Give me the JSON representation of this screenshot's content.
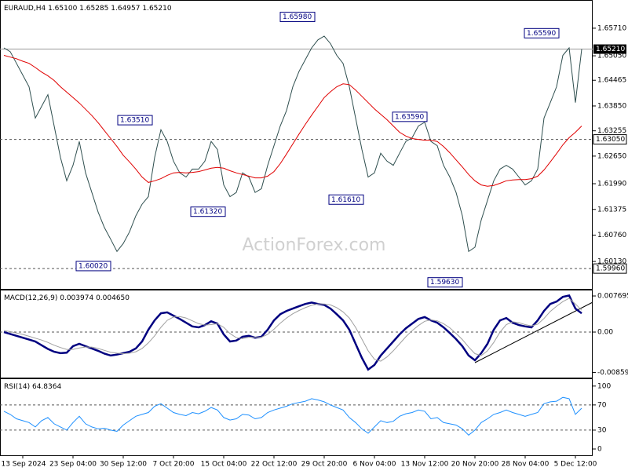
{
  "chart_data": [
    {
      "type": "line",
      "title": "EURAUD,H4",
      "header_values": [
        "1.65100",
        "1.65285",
        "1.64957",
        "1.65210"
      ],
      "watermark": "ActionForex.com",
      "categories": [
        null,
        null,
        null,
        "13 Sep 2024",
        null,
        null,
        null,
        null,
        null,
        null,
        null,
        "23 Sep 04:00",
        null,
        null,
        null,
        null,
        null,
        null,
        null,
        "30 Sep 12:00",
        null,
        null,
        null,
        null,
        null,
        null,
        null,
        "7 Oct 20:00",
        null,
        null,
        null,
        null,
        null,
        null,
        null,
        "15 Oct 04:00",
        null,
        null,
        null,
        null,
        null,
        null,
        null,
        "22 Oct 12:00",
        null,
        null,
        null,
        null,
        null,
        null,
        null,
        "29 Oct 20:00",
        null,
        null,
        null,
        null,
        null,
        null,
        null,
        "6 Nov 04:00",
        null,
        null,
        null,
        null,
        null,
        null,
        null,
        "13 Nov 12:00",
        null,
        null,
        null,
        null,
        null,
        null,
        null,
        "20 Nov 20:00",
        null,
        null,
        null,
        null,
        null,
        null,
        null,
        "28 Nov 04:00",
        null,
        null,
        null,
        null,
        null,
        null,
        null,
        "5 Dec 12:00",
        null
      ],
      "series": [
        {
          "name": "EURAUD",
          "color": "#2f4f4f",
          "values": [
            1.6524,
            1.6515,
            1.6487,
            1.6459,
            1.6431,
            1.6356,
            1.6384,
            1.6412,
            1.6337,
            1.6262,
            1.6206,
            1.6243,
            1.63,
            1.6225,
            1.6178,
            1.6131,
            1.6094,
            1.6066,
            1.6037,
            1.6056,
            1.6084,
            1.6122,
            1.615,
            1.6168,
            1.6262,
            1.6328,
            1.63,
            1.6253,
            1.6225,
            1.6215,
            1.6234,
            1.6234,
            1.6253,
            1.63,
            1.6281,
            1.6196,
            1.6168,
            1.6178,
            1.6225,
            1.6215,
            1.6178,
            1.6187,
            1.6243,
            1.629,
            1.6337,
            1.6374,
            1.6431,
            1.6468,
            1.6496,
            1.6524,
            1.6543,
            1.6552,
            1.6534,
            1.6506,
            1.6487,
            1.6431,
            1.6356,
            1.6281,
            1.6215,
            1.6225,
            1.6272,
            1.6253,
            1.6243,
            1.6272,
            1.63,
            1.6309,
            1.6337,
            1.6346,
            1.63,
            1.629,
            1.6243,
            1.6215,
            1.6178,
            1.6122,
            1.6037,
            1.6047,
            1.6112,
            1.6159,
            1.6206,
            1.6234,
            1.6243,
            1.6234,
            1.6215,
            1.6196,
            1.6206,
            1.6234,
            1.6356,
            1.6393,
            1.6431,
            1.6506,
            1.6524,
            1.6393,
            1.6521
          ]
        },
        {
          "name": "MA",
          "color": "#e00000",
          "values": [
            1.6506,
            1.6502,
            1.6498,
            1.6492,
            1.6487,
            1.6477,
            1.6466,
            1.6457,
            1.6446,
            1.6431,
            1.6418,
            1.6405,
            1.6392,
            1.6377,
            1.6362,
            1.6345,
            1.6326,
            1.6307,
            1.6288,
            1.6267,
            1.6251,
            1.6234,
            1.6215,
            1.6202,
            1.6206,
            1.6211,
            1.6219,
            1.6225,
            1.6226,
            1.6225,
            1.6226,
            1.6228,
            1.6232,
            1.6236,
            1.6238,
            1.6236,
            1.623,
            1.6225,
            1.6221,
            1.6217,
            1.6213,
            1.6213,
            1.6217,
            1.6228,
            1.6247,
            1.627,
            1.6294,
            1.6318,
            1.6341,
            1.6363,
            1.6384,
            1.6405,
            1.6419,
            1.6431,
            1.6438,
            1.6436,
            1.6423,
            1.6408,
            1.6393,
            1.6378,
            1.6365,
            1.6352,
            1.6337,
            1.6322,
            1.6313,
            1.6307,
            1.6305,
            1.6303,
            1.6303,
            1.63,
            1.6288,
            1.6273,
            1.6256,
            1.6239,
            1.6221,
            1.6206,
            1.6196,
            1.6193,
            1.6195,
            1.62,
            1.6206,
            1.6208,
            1.6209,
            1.6209,
            1.6211,
            1.6217,
            1.6232,
            1.6251,
            1.6271,
            1.6292,
            1.6309,
            1.6322,
            1.6337
          ]
        }
      ],
      "ylim": [
        1.59474,
        1.66366
      ],
      "yticks": [
        {
          "value": 1.6571,
          "label": "1.65710"
        },
        {
          "value": 1.6505,
          "label": "1.65050"
        },
        {
          "value": 1.64465,
          "label": "1.64465"
        },
        {
          "value": 1.6385,
          "label": "1.63850"
        },
        {
          "value": 1.63255,
          "label": "1.63255"
        },
        {
          "value": 1.6265,
          "label": "1.62650"
        },
        {
          "value": 1.6199,
          "label": "1.61990"
        },
        {
          "value": 1.61375,
          "label": "1.61375"
        },
        {
          "value": 1.6076,
          "label": "1.60760"
        },
        {
          "value": 1.6013,
          "label": "1.60130"
        }
      ],
      "current_price": {
        "value": 1.6521,
        "label": "1.65210"
      },
      "levels": [
        {
          "value": 1.6305,
          "label": "1.63050"
        },
        {
          "value": 1.5996,
          "label": "1.59960"
        }
      ],
      "annotations": [
        {
          "value": 1.6598,
          "label": "1.65980"
        },
        {
          "value": 1.6559,
          "label": "1.65590"
        },
        {
          "value": 1.6351,
          "label": "1.63510"
        },
        {
          "value": 1.6359,
          "label": "1.63590"
        },
        {
          "value": 1.6132,
          "label": "1.61320"
        },
        {
          "value": 1.6161,
          "label": "1.61610"
        },
        {
          "value": 1.6002,
          "label": "1.60020"
        },
        {
          "value": 1.5963,
          "label": "1.59630"
        }
      ]
    },
    {
      "type": "line",
      "title": "MACD(12,26,9)",
      "header_values": [
        "0.003974",
        "0.004650"
      ],
      "series": [
        {
          "name": "MACD",
          "color": "#000080",
          "values": [
            0,
            -0.0004,
            -0.0008,
            -0.0012,
            -0.0016,
            -0.002,
            -0.0028,
            -0.0036,
            -0.0042,
            -0.0045,
            -0.0044,
            -0.003,
            -0.0025,
            -0.003,
            -0.0035,
            -0.004,
            -0.0046,
            -0.005,
            -0.0048,
            -0.0045,
            -0.0042,
            -0.0035,
            -0.002,
            0.0005,
            0.0025,
            0.004,
            0.0042,
            0.0035,
            0.0028,
            0.002,
            0.0012,
            0.001,
            0.0015,
            0.0023,
            0.0018,
            -0.0005,
            -0.002,
            -0.0018,
            -0.001,
            -0.0008,
            -0.0012,
            -0.001,
            0.0005,
            0.0025,
            0.0038,
            0.0045,
            0.005,
            0.0055,
            0.006,
            0.0063,
            0.006,
            0.0058,
            0.005,
            0.0038,
            0.0025,
            0.0005,
            -0.0025,
            -0.0055,
            -0.008,
            -0.007,
            -0.005,
            -0.0035,
            -0.002,
            -0.0005,
            0.0008,
            0.0018,
            0.0028,
            0.0032,
            0.0025,
            0.002,
            0.001,
            -0.0002,
            -0.0015,
            -0.003,
            -0.005,
            -0.006,
            -0.0045,
            -0.0025,
            0.0005,
            0.0025,
            0.003,
            0.002,
            0.0015,
            0.0012,
            0.001,
            0.0025,
            0.0045,
            0.006,
            0.0065,
            0.0075,
            0.0078,
            0.005,
            0.004
          ]
        },
        {
          "name": "Signal",
          "color": "#a0a0a0",
          "values": [
            0.0003,
            0.0001,
            -0.0002,
            -0.0005,
            -0.0009,
            -0.0013,
            -0.0017,
            -0.0022,
            -0.0028,
            -0.0033,
            -0.0037,
            -0.0037,
            -0.0034,
            -0.0032,
            -0.0032,
            -0.0035,
            -0.0039,
            -0.0043,
            -0.0045,
            -0.0046,
            -0.0045,
            -0.0042,
            -0.0035,
            -0.0023,
            -0.0008,
            0.001,
            0.0025,
            0.0032,
            0.0033,
            0.003,
            0.0024,
            0.0018,
            0.0015,
            0.0016,
            0.0018,
            0.001,
            -0.0003,
            -0.0012,
            -0.0014,
            -0.0011,
            -0.0011,
            -0.0011,
            -0.0005,
            0.0006,
            0.0019,
            0.003,
            0.0039,
            0.0046,
            0.0052,
            0.0057,
            0.006,
            0.006,
            0.0058,
            0.0052,
            0.0043,
            0.003,
            0.001,
            -0.0015,
            -0.004,
            -0.0058,
            -0.0062,
            -0.0053,
            -0.004,
            -0.0025,
            -0.001,
            0.0003,
            0.0014,
            0.0023,
            0.0026,
            0.0024,
            0.0018,
            0.0009,
            -0.0003,
            -0.0016,
            -0.0032,
            -0.0046,
            -0.005,
            -0.004,
            -0.0022,
            0,
            0.0016,
            0.0022,
            0.002,
            0.0016,
            0.0013,
            0.0017,
            0.0029,
            0.0044,
            0.0055,
            0.0065,
            0.0072,
            0.006,
            0.00465
          ]
        }
      ],
      "ylim": [
        -0.0097,
        0.00887
      ],
      "yticks": [
        0.007695,
        {
          "value": 0,
          "label": "0.00"
        },
        -0.008599
      ],
      "levels": [
        0
      ]
    },
    {
      "type": "line",
      "title": "RSI(14)",
      "header_values": [
        "64.8364"
      ],
      "series": [
        {
          "name": "RSI",
          "color": "#1e90ff",
          "values": [
            60,
            55,
            48,
            45,
            42,
            35,
            45,
            50,
            40,
            35,
            30,
            42,
            52,
            40,
            35,
            32,
            33,
            30,
            28,
            38,
            45,
            52,
            55,
            58,
            68,
            72,
            65,
            58,
            55,
            53,
            58,
            56,
            60,
            66,
            62,
            50,
            46,
            48,
            55,
            54,
            48,
            50,
            58,
            62,
            65,
            68,
            72,
            74,
            76,
            80,
            78,
            75,
            70,
            66,
            62,
            50,
            42,
            32,
            25,
            35,
            45,
            42,
            44,
            52,
            56,
            58,
            62,
            60,
            48,
            50,
            42,
            40,
            38,
            32,
            22,
            30,
            42,
            48,
            55,
            58,
            62,
            58,
            55,
            52,
            55,
            58,
            72,
            75,
            76,
            82,
            80,
            55,
            64.8364
          ]
        }
      ],
      "ylim": [
        -10,
        111
      ],
      "yticks": [
        100,
        70,
        30,
        0
      ],
      "levels": [
        70,
        30
      ]
    }
  ]
}
